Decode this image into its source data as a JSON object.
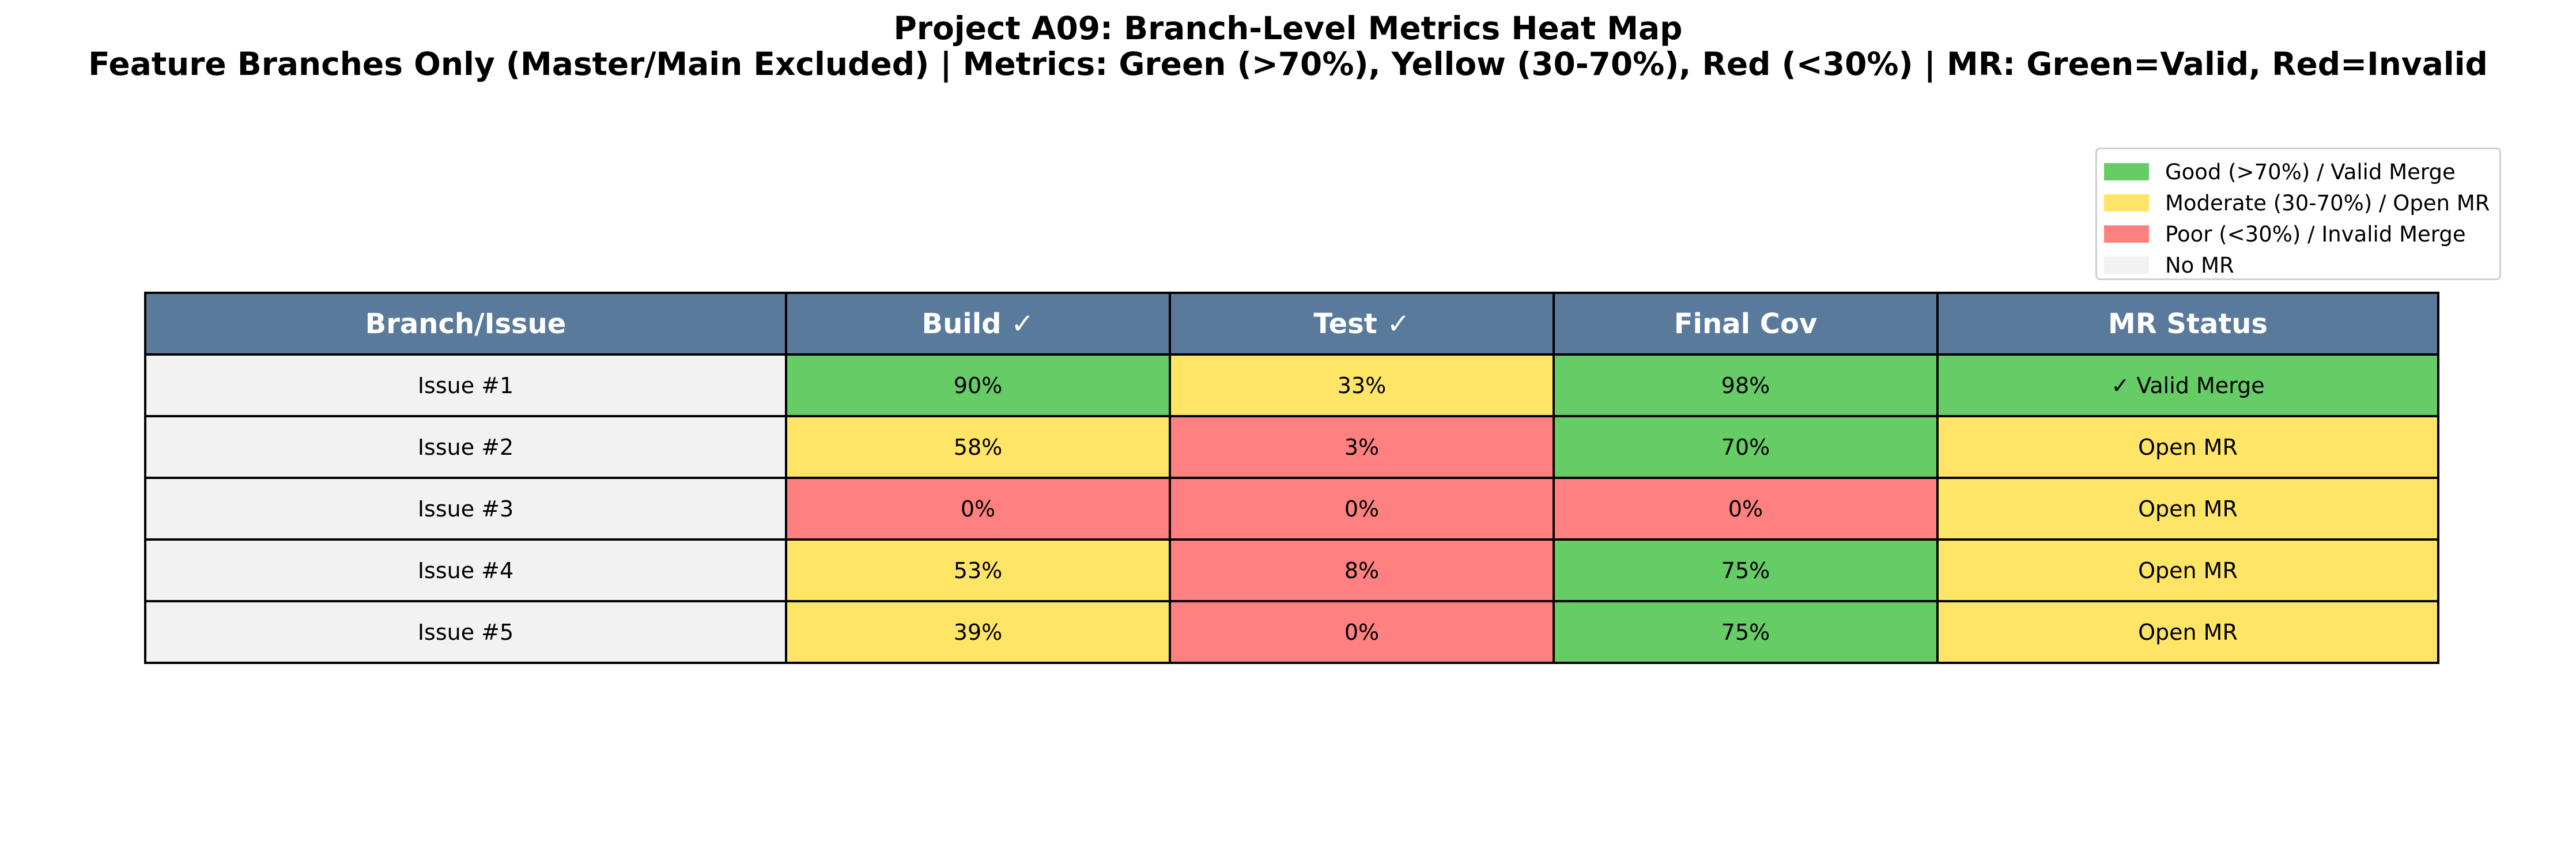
{
  "title": "Project A09: Branch-Level Metrics Heat Map",
  "subtitle": "Feature Branches Only (Master/Main Excluded) | Metrics: Green (>70%), Yellow (30-70%), Red (<30%) | MR: Green=Valid, Red=Invalid",
  "colors": {
    "header": "#5a7a9c",
    "good": "#66cc66",
    "moderate": "#ffe566",
    "poor": "#ff8080",
    "none": "#f2f2f2"
  },
  "legend": [
    {
      "label": "Good (>70%) / Valid Merge",
      "color": "#66cc66"
    },
    {
      "label": "Moderate (30-70%) / Open MR",
      "color": "#ffe566"
    },
    {
      "label": "Poor (<30%) / Invalid Merge",
      "color": "#ff8080"
    },
    {
      "label": "No MR",
      "color": "#f2f2f2"
    }
  ],
  "chart_data": {
    "type": "table",
    "columns": [
      "Branch/Issue",
      "Build ✓",
      "Test ✓",
      "Final Cov",
      "MR Status"
    ],
    "rows": [
      {
        "branch": "Issue #1",
        "build": "90%",
        "test": "33%",
        "final_cov": "98%",
        "mr_status": "✓ Valid Merge",
        "levels": [
          "none",
          "good",
          "moderate",
          "good",
          "good"
        ]
      },
      {
        "branch": "Issue #2",
        "build": "58%",
        "test": "3%",
        "final_cov": "70%",
        "mr_status": "Open MR",
        "levels": [
          "none",
          "moderate",
          "poor",
          "good",
          "moderate"
        ]
      },
      {
        "branch": "Issue #3",
        "build": "0%",
        "test": "0%",
        "final_cov": "0%",
        "mr_status": "Open MR",
        "levels": [
          "none",
          "poor",
          "poor",
          "poor",
          "moderate"
        ]
      },
      {
        "branch": "Issue #4",
        "build": "53%",
        "test": "8%",
        "final_cov": "75%",
        "mr_status": "Open MR",
        "levels": [
          "none",
          "moderate",
          "poor",
          "good",
          "moderate"
        ]
      },
      {
        "branch": "Issue #5",
        "build": "39%",
        "test": "0%",
        "final_cov": "75%",
        "mr_status": "Open MR",
        "levels": [
          "none",
          "moderate",
          "poor",
          "good",
          "moderate"
        ]
      }
    ]
  }
}
